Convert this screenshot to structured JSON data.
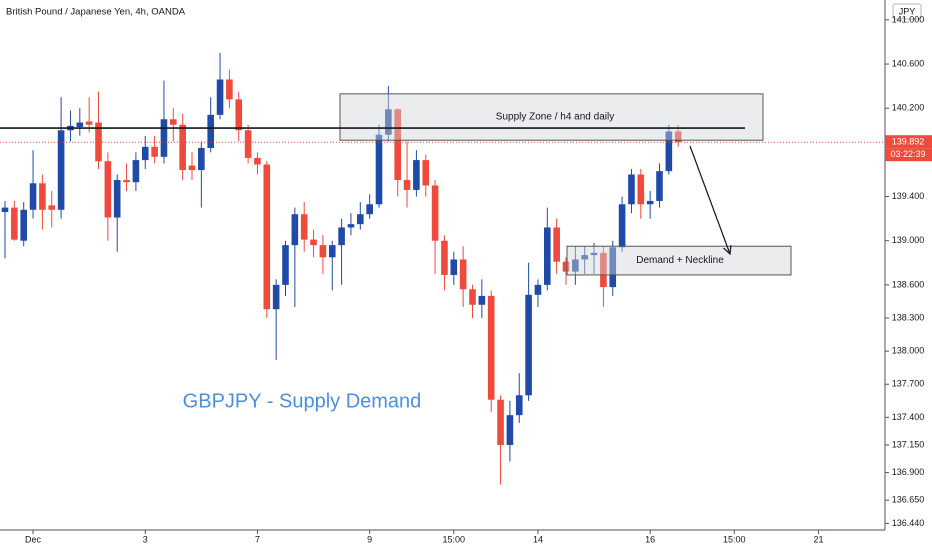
{
  "chart_data": {
    "type": "candlestick",
    "title": "British Pound / Japanese Yen, 4h, OANDA",
    "currency": "JPY",
    "categories": [
      null,
      null,
      null,
      "Dec",
      null,
      null,
      null,
      null,
      null,
      null,
      null,
      null,
      null,
      null,
      null,
      "3",
      null,
      null,
      null,
      null,
      null,
      null,
      null,
      null,
      null,
      null,
      null,
      "7",
      null,
      null,
      null,
      null,
      null,
      null,
      null,
      null,
      null,
      null,
      null,
      "9",
      null,
      null,
      null,
      null,
      null,
      null,
      null,
      null,
      "15:00",
      null,
      null,
      null,
      null,
      null,
      null,
      null,
      null,
      "14",
      null,
      null,
      null,
      null,
      null,
      null,
      null,
      null,
      null,
      null,
      null,
      "16",
      null,
      null,
      null,
      null,
      null,
      null,
      null,
      null,
      "15:00",
      null,
      null,
      null,
      null,
      null,
      null,
      null,
      null,
      "21",
      null,
      null,
      null,
      null,
      null,
      null
    ],
    "open": [
      139.26,
      139.3,
      139.0,
      139.28,
      139.52,
      139.32,
      139.28,
      140.0,
      140.03,
      140.08,
      140.07,
      139.72,
      139.21,
      139.55,
      139.53,
      139.73,
      139.85,
      139.76,
      140.1,
      140.05,
      139.68,
      139.64,
      139.84,
      140.14,
      140.46,
      140.28,
      140.0,
      139.75,
      139.69,
      138.38,
      138.6,
      138.96,
      139.24,
      139.01,
      138.96,
      138.85,
      138.96,
      139.12,
      139.15,
      139.24,
      139.33,
      139.96,
      140.19,
      139.55,
      139.46,
      139.73,
      139.5,
      139.0,
      138.69,
      138.83,
      138.56,
      138.42,
      138.5,
      137.56,
      137.15,
      137.42,
      137.6,
      138.51,
      138.6,
      139.12,
      138.81,
      138.72,
      138.83,
      138.87,
      138.89,
      138.58,
      138.94,
      139.33,
      139.6,
      139.33,
      139.36,
      139.63,
      139.99,
      null,
      null,
      null,
      null,
      null,
      null,
      null,
      null,
      null,
      null,
      null,
      null,
      null,
      null,
      null,
      null,
      null,
      null,
      null,
      null,
      null
    ],
    "high": [
      139.36,
      139.36,
      139.35,
      139.82,
      139.6,
      139.45,
      140.3,
      140.18,
      140.2,
      140.3,
      140.35,
      139.8,
      139.6,
      139.7,
      139.8,
      139.95,
      139.95,
      140.45,
      140.2,
      140.15,
      139.8,
      139.9,
      140.3,
      140.7,
      140.55,
      140.35,
      140.05,
      139.8,
      139.72,
      138.65,
      139.0,
      139.3,
      139.35,
      139.1,
      139.05,
      139.0,
      139.2,
      139.25,
      139.35,
      139.42,
      140.05,
      140.4,
      140.2,
      139.9,
      139.82,
      139.78,
      139.55,
      139.05,
      138.9,
      138.95,
      138.6,
      138.65,
      138.55,
      137.6,
      137.55,
      137.8,
      138.8,
      138.65,
      139.3,
      139.2,
      138.85,
      138.95,
      138.95,
      138.98,
      138.95,
      139.0,
      139.4,
      139.65,
      139.65,
      139.45,
      139.7,
      140.05,
      140.05,
      null,
      null,
      null,
      null,
      null,
      null,
      null,
      null,
      null,
      null,
      null,
      null,
      null,
      null,
      null,
      null,
      null,
      null,
      null,
      null,
      null
    ],
    "low": [
      138.84,
      139.0,
      138.95,
      139.2,
      139.1,
      139.12,
      139.2,
      139.9,
      139.95,
      139.98,
      139.65,
      139.0,
      138.9,
      139.45,
      139.45,
      139.65,
      139.7,
      139.7,
      139.9,
      139.55,
      139.55,
      139.3,
      139.8,
      140.1,
      140.2,
      139.9,
      139.7,
      139.6,
      138.3,
      137.92,
      138.5,
      138.4,
      138.9,
      138.85,
      138.7,
      138.55,
      138.6,
      139.05,
      139.1,
      139.2,
      139.3,
      139.9,
      139.4,
      139.3,
      139.4,
      139.4,
      138.7,
      138.55,
      138.6,
      138.4,
      138.3,
      138.3,
      137.45,
      136.79,
      137.0,
      137.35,
      137.55,
      138.4,
      138.55,
      138.7,
      138.6,
      138.6,
      138.7,
      138.7,
      138.4,
      138.5,
      138.9,
      139.25,
      139.2,
      139.2,
      139.3,
      139.6,
      139.85,
      null,
      null,
      null,
      null,
      null,
      null,
      null,
      null,
      null,
      null,
      null,
      null,
      null,
      null,
      null,
      null,
      null,
      null,
      null,
      null,
      null
    ],
    "close": [
      139.3,
      139.01,
      139.28,
      139.52,
      139.28,
      139.28,
      140.0,
      140.04,
      140.07,
      140.05,
      139.72,
      139.21,
      139.55,
      139.53,
      139.73,
      139.85,
      139.76,
      140.1,
      140.05,
      139.64,
      139.64,
      139.84,
      140.14,
      140.46,
      140.28,
      140.0,
      139.75,
      139.69,
      138.38,
      138.6,
      138.96,
      139.24,
      139.01,
      138.96,
      138.85,
      138.96,
      139.12,
      139.15,
      139.24,
      139.33,
      139.96,
      140.19,
      139.55,
      139.46,
      139.73,
      139.5,
      139.0,
      138.69,
      138.83,
      138.56,
      138.42,
      138.5,
      137.56,
      137.15,
      137.42,
      137.6,
      138.51,
      138.6,
      139.12,
      138.81,
      138.72,
      138.83,
      138.87,
      138.89,
      138.58,
      138.94,
      139.33,
      139.6,
      139.33,
      139.36,
      139.63,
      139.99,
      139.892,
      null,
      null,
      null,
      null,
      null,
      null,
      null,
      null,
      null,
      null,
      null,
      null,
      null,
      null,
      null,
      null,
      null,
      null,
      null,
      null,
      null
    ],
    "up_color": "#1f4aa8",
    "down_color": "#ef4a3c",
    "ylim": [
      136.38,
      141.18
    ],
    "yticks": [
      {
        "value": 141,
        "label": "141.000"
      },
      {
        "value": 140.6,
        "label": "140.600"
      },
      {
        "value": 140.2,
        "label": "140.200"
      },
      {
        "value": 139.4,
        "label": "139.400"
      },
      {
        "value": 139,
        "label": "139.000"
      },
      {
        "value": 138.6,
        "label": "138.600"
      },
      {
        "value": 138.3,
        "label": "138.300"
      },
      {
        "value": 138,
        "label": "138.000"
      },
      {
        "value": 137.7,
        "label": "137.700"
      },
      {
        "value": 137.4,
        "label": "137.400"
      },
      {
        "value": 137.15,
        "label": "137.150"
      },
      {
        "value": 136.9,
        "label": "136.900"
      },
      {
        "value": 136.65,
        "label": "136.650"
      },
      {
        "value": 136.44,
        "label": "136.440"
      }
    ],
    "grid": false,
    "last_price": 139.892,
    "countdown": "03:22:39",
    "level": 140.02,
    "supply_zone": {
      "label": "Supply Zone / h4 and daily",
      "top": 140.33,
      "bottom": 139.91
    },
    "demand_zone": {
      "label": "Demand + Neckline",
      "top": 138.95,
      "bottom": 138.69
    },
    "watermark": "GBPJPY - Supply Demand"
  }
}
